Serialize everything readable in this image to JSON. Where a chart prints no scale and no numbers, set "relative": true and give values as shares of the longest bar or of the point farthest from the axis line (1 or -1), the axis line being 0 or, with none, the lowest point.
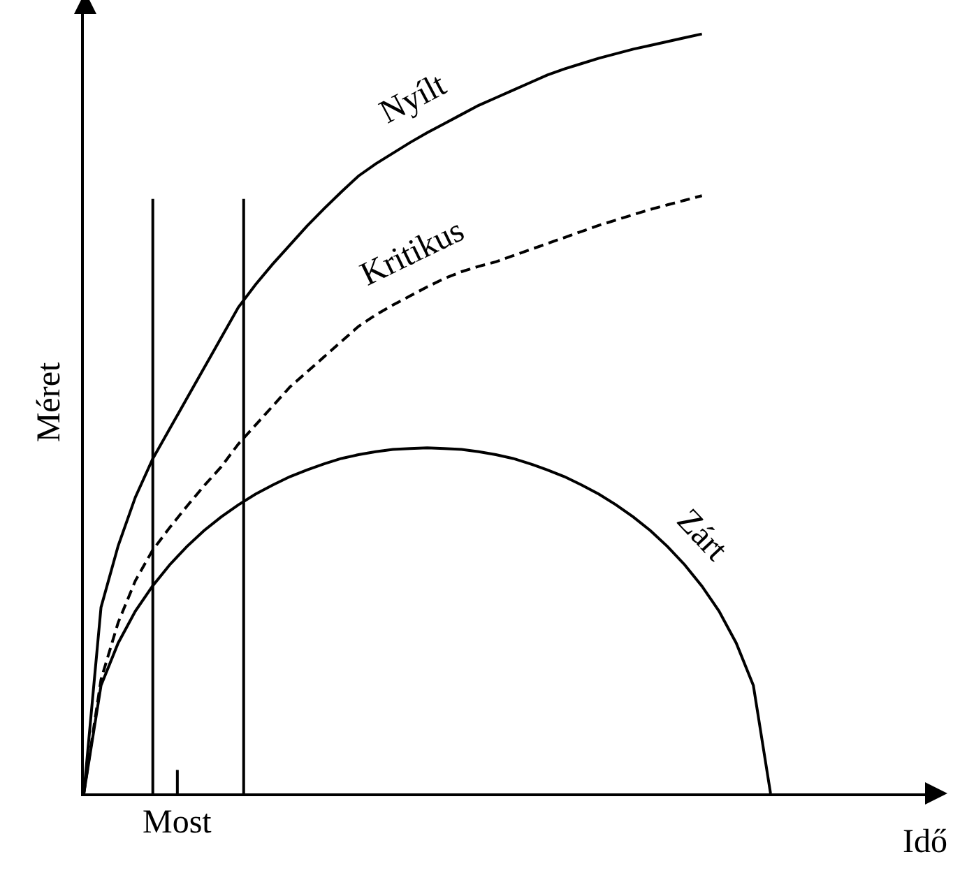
{
  "chart_data": {
    "type": "line",
    "relative": true,
    "xlabel": "Idő",
    "ylabel": "Méret",
    "grid": false,
    "legend": false,
    "marker": "none",
    "categories": [
      null,
      null,
      null,
      null,
      null,
      null,
      null,
      null,
      null,
      null,
      null,
      null,
      null,
      null,
      null,
      null,
      null,
      null,
      null,
      null,
      null,
      null,
      null,
      null,
      null,
      null,
      null,
      null,
      null,
      null,
      null,
      null,
      null,
      null,
      null,
      null,
      null,
      null,
      null,
      null,
      null,
      null,
      null,
      null,
      null,
      null,
      null,
      null,
      null
    ],
    "annotations": [
      "Most"
    ],
    "series": [
      {
        "name": "Nyílt",
        "color": "#000000",
        "line_style": "solid",
        "values": [
          0,
          0.245,
          0.326,
          0.39,
          0.44,
          0.48,
          0.52,
          0.56,
          0.6,
          0.64,
          0.67,
          0.697,
          0.722,
          0.747,
          0.77,
          0.792,
          0.813,
          0.829,
          0.843,
          0.857,
          0.87,
          0.882,
          0.894,
          0.906,
          0.916,
          0.926,
          0.936,
          0.946,
          0.954,
          0.961,
          0.968,
          0.974,
          0.98,
          0.985,
          0.99,
          0.995,
          1,
          null,
          null,
          null,
          null,
          null,
          null,
          null,
          null,
          null,
          null,
          null,
          null
        ]
      },
      {
        "name": "Kritikus",
        "color": "#000000",
        "line_style": "dashed",
        "values": [
          0,
          0.15,
          0.225,
          0.28,
          0.32,
          0.35,
          0.378,
          0.405,
          0.43,
          0.46,
          0.485,
          0.51,
          0.535,
          0.555,
          0.575,
          0.595,
          0.615,
          0.63,
          0.643,
          0.655,
          0.667,
          0.678,
          0.687,
          0.694,
          0.7,
          0.708,
          0.716,
          0.724,
          0.732,
          0.74,
          0.748,
          0.755,
          0.762,
          0.769,
          0.775,
          0.781,
          0.787,
          null,
          null,
          null,
          null,
          null,
          null,
          null,
          null,
          null,
          null,
          null,
          null
        ]
      },
      {
        "name": "Zárt",
        "color": "#000000",
        "line_style": "solid",
        "values": [
          0,
          0.142,
          0.198,
          0.24,
          0.273,
          0.301,
          0.325,
          0.346,
          0.364,
          0.38,
          0.394,
          0.406,
          0.417,
          0.426,
          0.434,
          0.441,
          0.446,
          0.45,
          0.453,
          0.454,
          0.455,
          0.454,
          0.453,
          0.45,
          0.446,
          0.441,
          0.434,
          0.426,
          0.417,
          0.406,
          0.394,
          0.38,
          0.364,
          0.346,
          0.325,
          0.301,
          0.273,
          0.24,
          0.198,
          0.142,
          0,
          null,
          null,
          null,
          null,
          null,
          null,
          null,
          null
        ]
      }
    ]
  }
}
